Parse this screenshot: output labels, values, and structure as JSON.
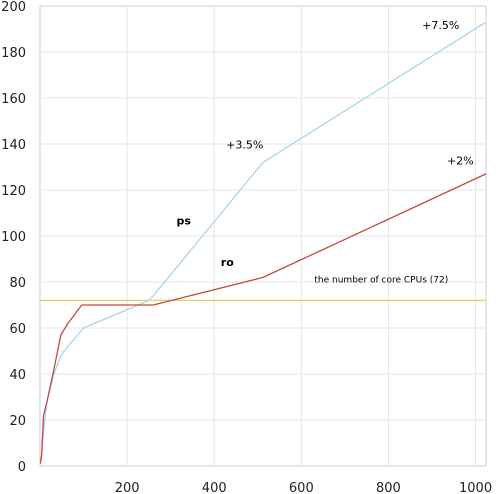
{
  "chart_data": {
    "type": "line",
    "title": "",
    "xlabel": "",
    "ylabel": "",
    "xlim": [
      0,
      1024
    ],
    "ylim": [
      0,
      200
    ],
    "x_ticks": [
      "200",
      "400",
      "600",
      "800",
      "1000"
    ],
    "y_ticks": [
      "0",
      "20",
      "40",
      "60",
      "80",
      "100",
      "120",
      "140",
      "160",
      "180",
      "200"
    ],
    "grid": "vertical and horizontal",
    "series": [
      {
        "name": "ps",
        "color": "#aad4f0",
        "x": [
          1,
          4,
          8,
          16,
          32,
          48,
          64,
          100,
          250,
          260,
          512,
          1024
        ],
        "y": [
          1,
          5,
          15,
          28,
          40,
          48,
          52,
          60,
          72,
          74,
          132,
          193
        ]
      },
      {
        "name": "ro",
        "color": "#c44a44",
        "x": [
          1,
          4,
          8,
          16,
          32,
          48,
          64,
          96,
          128,
          256,
          260,
          512,
          1024
        ],
        "y": [
          1,
          5,
          22,
          28,
          42,
          57,
          62,
          70,
          70,
          70,
          70,
          82,
          127
        ]
      }
    ],
    "reference_line": {
      "y": 72,
      "color": "#e3d35a",
      "label": "the number of core CPUs (72)"
    },
    "annotations": [
      {
        "text": "+7.5%",
        "x": 920,
        "y": 190
      },
      {
        "text": "+3.5%",
        "x": 470,
        "y": 138
      },
      {
        "text": "+2%",
        "x": 965,
        "y": 131
      },
      {
        "text": "ps",
        "x": 330,
        "y": 105
      },
      {
        "text": "ro",
        "x": 430,
        "y": 87
      }
    ]
  }
}
